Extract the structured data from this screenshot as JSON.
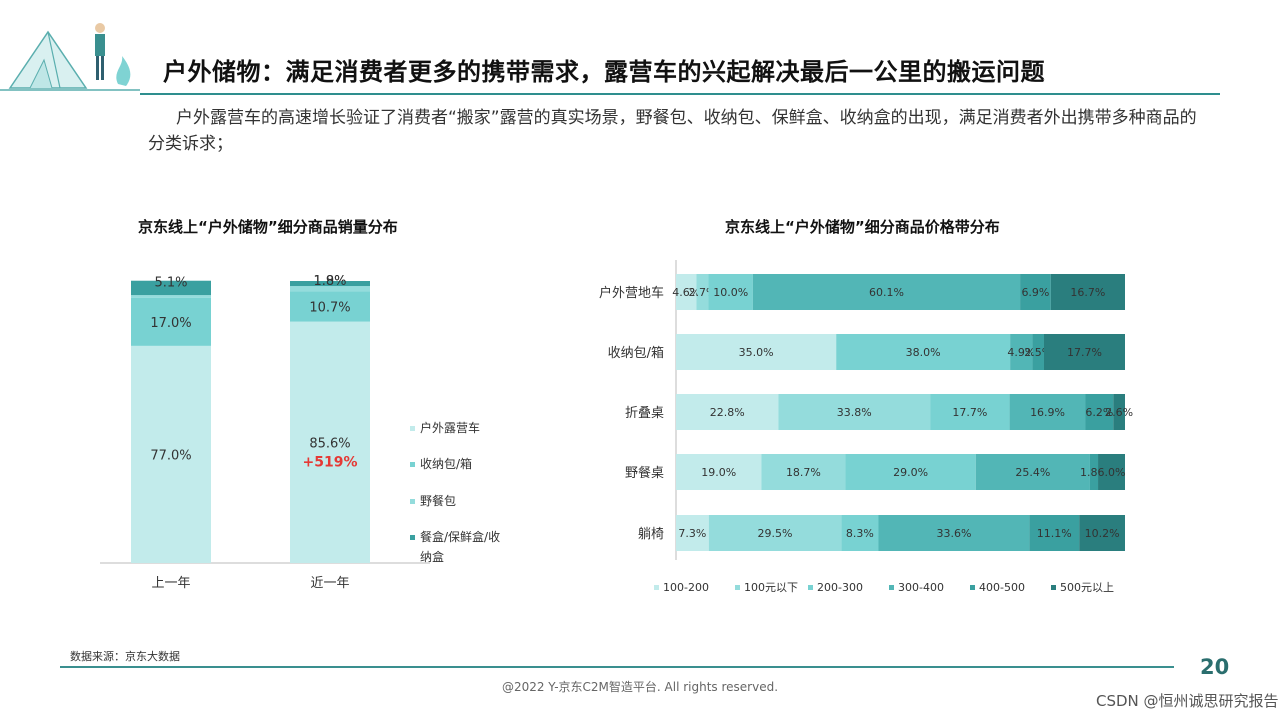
{
  "header": {
    "title": "户外储物：满足消费者更多的携带需求，露营车的兴起解决最后一公里的搬运问题",
    "intro": "户外露营车的高速增长验证了消费者“搬家”露营的真实场景，野餐包、收纳包、保鲜盒、收纳盒的出现，满足消费者外出携带多种商品的分类诉求；"
  },
  "footer": {
    "source": "数据来源：京东大数据",
    "page_number": "20",
    "copyright": "@2022 Y-京东C2M智造平台. All rights reserved.",
    "attribution": "CSDN @恒州诚思研究报告"
  },
  "colors": {
    "accent": "#2e8e8e",
    "s1": "#c2ebeb",
    "s2": "#94dcdc",
    "s3": "#78d2d2",
    "s4": "#52b6b6",
    "s5": "#3aa0a0",
    "s6": "#2a7e7e",
    "highlight": "#e53935"
  },
  "chart_data": [
    {
      "type": "bar",
      "stacked": true,
      "title": "京东线上“户外储物”细分商品销量分布",
      "categories": [
        "上一年",
        "近一年"
      ],
      "series": [
        {
          "name": "户外露营车",
          "values": [
            77.0,
            85.6
          ],
          "labels": [
            "77.0%",
            "85.6%"
          ]
        },
        {
          "name": "收纳包/箱",
          "values": [
            17.0,
            10.7
          ],
          "labels": [
            "17.0%",
            "10.7%"
          ]
        },
        {
          "name": "野餐包",
          "values": [
            1.0,
            1.9
          ],
          "labels": [
            "1.0%",
            "1.9%"
          ]
        },
        {
          "name": "餐盒/保鲜盒/收纳盒",
          "values": [
            5.1,
            1.8
          ],
          "labels": [
            "5.1%",
            "1.8%"
          ]
        }
      ],
      "annotation": "+519%",
      "ylim": [
        0,
        100
      ],
      "legend_position": "right"
    },
    {
      "type": "bar",
      "orientation": "horizontal",
      "stacked": true,
      "title": "京东线上“户外储物”细分商品价格带分布",
      "categories": [
        "户外营地车",
        "收纳包/箱",
        "折叠桌",
        "野餐桌",
        "躺椅"
      ],
      "series": [
        {
          "name": "100-200",
          "values": [
            4.6,
            35.0,
            22.8,
            19.0,
            7.3
          ],
          "labels": [
            "4.6%",
            "35.0%",
            "22.8%",
            "19.0%",
            "7.3%"
          ]
        },
        {
          "name": "100元以下",
          "values": [
            2.7,
            0,
            33.8,
            18.7,
            29.5
          ],
          "labels": [
            "2.7%",
            "",
            "33.8%",
            "18.7%",
            "29.5%"
          ]
        },
        {
          "name": "200-300",
          "values": [
            10.0,
            38.0,
            17.7,
            29.0,
            8.3
          ],
          "labels": [
            "10.0%",
            "38.0%",
            "17.7%",
            "29.0%",
            "8.3%"
          ]
        },
        {
          "name": "300-400",
          "values": [
            60.1,
            4.9,
            16.9,
            25.4,
            33.6
          ],
          "labels": [
            "60.1%",
            "4.9%",
            "16.9%",
            "25.4%",
            "33.6%"
          ]
        },
        {
          "name": "400-500",
          "values": [
            6.9,
            2.5,
            6.2,
            1.8,
            11.1
          ],
          "labels": [
            "6.9%",
            "2.5%",
            "6.2%",
            "1.8%",
            "11.1%"
          ]
        },
        {
          "name": "500元以上",
          "values": [
            16.7,
            17.7,
            2.6,
            6.0,
            10.2
          ],
          "labels": [
            "16.7%",
            "17.7%",
            "2.6%",
            "6.0%",
            "10.2%"
          ]
        }
      ],
      "xlim": [
        0,
        100
      ],
      "legend_position": "bottom"
    }
  ]
}
